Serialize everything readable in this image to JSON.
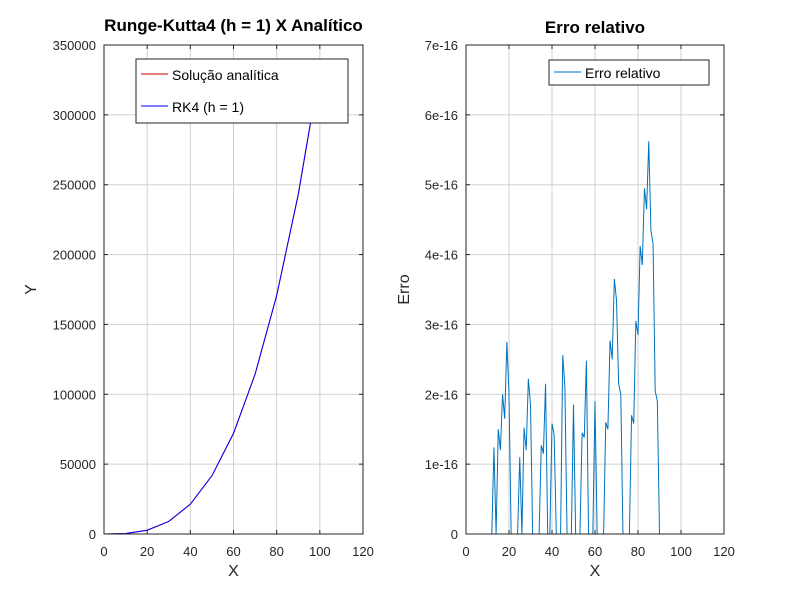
{
  "chart_data": [
    {
      "type": "line",
      "title": "Runge-Kutta4 (h = 1) X Analítico",
      "xlabel": "X",
      "ylabel": "Y",
      "xlim": [
        0,
        120
      ],
      "ylim": [
        0,
        350000
      ],
      "xticks": [
        "0",
        "20",
        "40",
        "60",
        "80",
        "100",
        "120"
      ],
      "yticks": [
        "0",
        "50000",
        "100000",
        "150000",
        "200000",
        "250000",
        "300000",
        "350000"
      ],
      "grid": true,
      "legend": "top",
      "series": [
        {
          "name": "Solução analítica",
          "color": "#cc0000",
          "x": [
            0,
            10,
            20,
            30,
            40,
            50,
            60,
            70,
            80,
            90,
            100
          ],
          "y": [
            0,
            333,
            2667,
            9000,
            21333,
            41667,
            72000,
            114333,
            170667,
            243000,
            333333
          ]
        },
        {
          "name": "RK4 (h = 1)",
          "color": "#0000ff",
          "x": [
            0,
            10,
            20,
            30,
            40,
            50,
            60,
            70,
            80,
            90,
            100
          ],
          "y": [
            0,
            333,
            2667,
            9000,
            21333,
            41667,
            72000,
            114333,
            170667,
            243000,
            333333
          ]
        }
      ]
    },
    {
      "type": "line",
      "title": "Erro relativo",
      "xlabel": "X",
      "ylabel": "Erro",
      "xlim": [
        0,
        120
      ],
      "ylim": [
        0,
        7e-16
      ],
      "xticks": [
        "0",
        "20",
        "40",
        "60",
        "80",
        "100",
        "120"
      ],
      "yticks": [
        "0",
        "1e-16",
        "2e-16",
        "3e-16",
        "4e-16",
        "5e-16",
        "6e-16",
        "7e-16"
      ],
      "grid": true,
      "legend": "top-right",
      "series": [
        {
          "name": "Erro relativo",
          "color": "#0072bd",
          "x": [
            1,
            2,
            3,
            4,
            5,
            6,
            7,
            8,
            9,
            10,
            11,
            12,
            13,
            14,
            15,
            16,
            17,
            18,
            19,
            20,
            21,
            22,
            23,
            24,
            25,
            26,
            27,
            28,
            29,
            30,
            31,
            32,
            33,
            34,
            35,
            36,
            37,
            38,
            39,
            40,
            41,
            42,
            43,
            44,
            45,
            46,
            47,
            48,
            49,
            50,
            51,
            52,
            53,
            54,
            55,
            56,
            57,
            58,
            59,
            60,
            61,
            62,
            63,
            64,
            65,
            66,
            67,
            68,
            69,
            70,
            71,
            72,
            73,
            74,
            75,
            76,
            77,
            78,
            79,
            80,
            81,
            82,
            83,
            84,
            85,
            86,
            87,
            88,
            89,
            90,
            91,
            92,
            93,
            94,
            95,
            96,
            97,
            98,
            99,
            100
          ],
          "y": [
            0,
            0,
            0,
            0,
            0,
            0,
            0,
            0,
            0,
            0,
            0,
            0,
            1.24e-16,
            0,
            1.5e-16,
            1.2e-16,
            2e-16,
            1.65e-16,
            2.75e-16,
            2e-16,
            0,
            0,
            0,
            0,
            1.1e-16,
            0,
            1.52e-16,
            1.2e-16,
            2.22e-16,
            1.85e-16,
            0,
            0,
            0,
            0,
            1.27e-16,
            1.15e-16,
            2.15e-16,
            0,
            0,
            1.58e-16,
            1.42e-16,
            0,
            0,
            0,
            2.56e-16,
            2.1e-16,
            0,
            0,
            0,
            1.85e-16,
            0,
            0,
            0,
            1.45e-16,
            1.38e-16,
            2.48e-16,
            0,
            0,
            0,
            1.9e-16,
            0,
            0,
            0,
            0,
            1.6e-16,
            1.5e-16,
            2.77e-16,
            2.5e-16,
            3.65e-16,
            3.35e-16,
            2.15e-16,
            2e-16,
            0,
            0,
            0,
            0,
            1.7e-16,
            1.58e-16,
            3.05e-16,
            2.85e-16,
            4.12e-16,
            3.85e-16,
            4.95e-16,
            4.65e-16,
            5.62e-16,
            4.35e-16,
            4.15e-16,
            2.05e-16,
            1.9e-16,
            0,
            0,
            0,
            0,
            0,
            0,
            0,
            0,
            0,
            0,
            0
          ]
        }
      ]
    }
  ]
}
